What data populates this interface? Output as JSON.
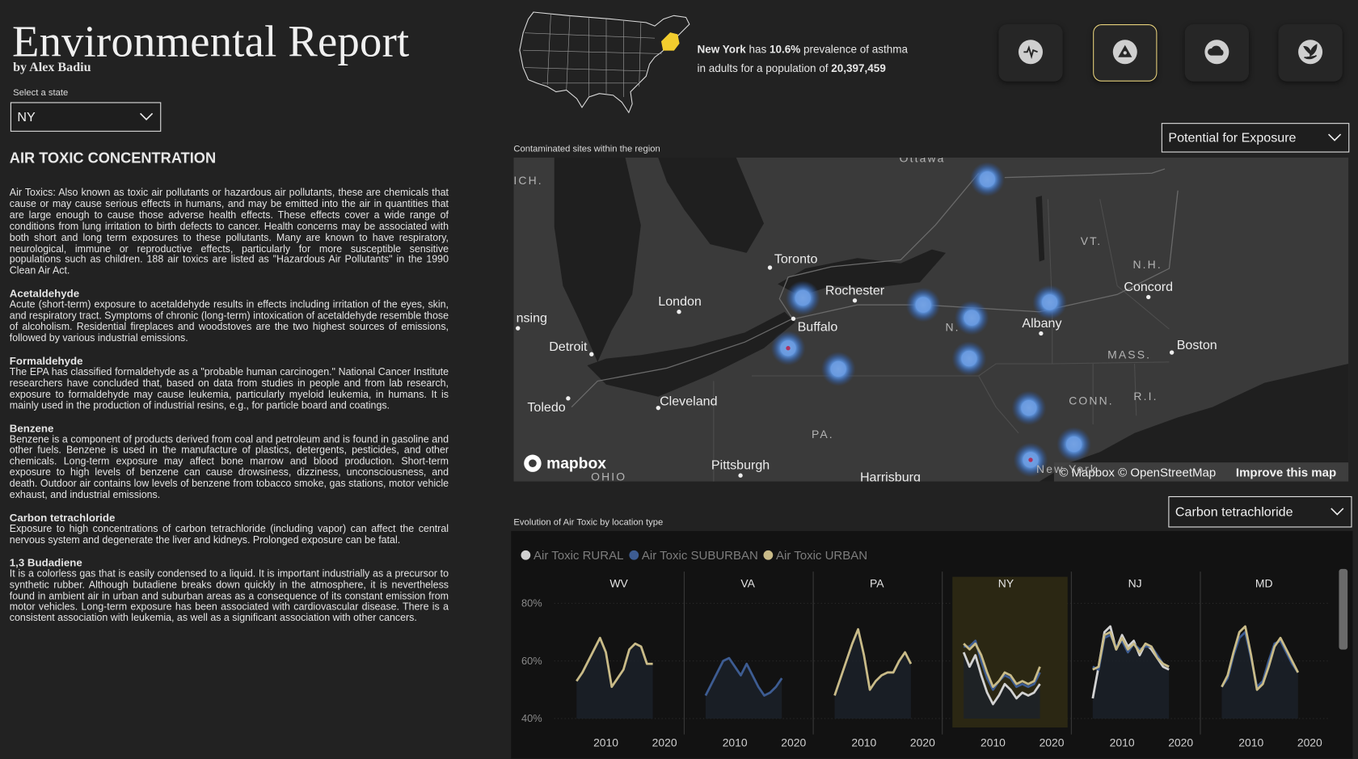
{
  "header": {
    "title": "Environmental Report",
    "byline": "by Alex Badiu"
  },
  "state_select": {
    "label": "Select a state",
    "value": "NY"
  },
  "summary": {
    "state": "New York",
    "has": "has",
    "prevalence": "10.6%",
    "text1": "prevalence of asthma",
    "text2": "in adults for a population of",
    "population": "20,397,459"
  },
  "article": {
    "title": "AIR TOXIC CONCENTRATION",
    "intro": "Air Toxics: Also known as toxic air pollutants or hazardous air pollutants, these are chemicals that cause or may cause serious effects in humans, and may be emitted into the air in quantities that are large enough to cause those adverse health effects. These effects cover a wide range of conditions from lung irritation to birth defects to cancer. Health concerns may be associated with both short and long term exposures to these pollutants. Many are known to have respiratory, neurological, immune or reproductive effects, particularly for more susceptible sensitive populations such as children. 188 air toxics are listed as \"Hazardous Air Pollutants\" in the 1990 Clean Air Act.",
    "sections": [
      {
        "heading": "Acetaldehyde",
        "body": "Acute (short-term) exposure to acetaldehyde results in effects including irritation of the eyes, skin, and respiratory tract. Symptoms of chronic (long-term) intoxication of acetaldehyde resemble those of alcoholism. Residential fireplaces and woodstoves are the two highest sources of emissions, followed by various industrial emissions."
      },
      {
        "heading": "Formaldehyde",
        "body": "The EPA has classified formaldehyde as a \"probable human carcinogen.\" National Cancer Institute researchers have concluded that, based on data from studies in people and from lab research, exposure to formaldehyde may cause leukemia, particularly myeloid leukemia, in humans. It is mainly used in the production of industrial resins, e.g., for particle board and coatings."
      },
      {
        "heading": "Benzene",
        "body": "Benzene is a component of products derived from coal and petroleum and is found in gasoline and other fuels. Benzene is used in the manufacture of plastics, detergents, pesticides, and other chemicals. Long-term exposure may affect bone marrow and blood production. Short-term exposure to high levels of benzene can cause drowsiness, dizziness, unconsciousness, and death. Outdoor air contains low levels of benzene from tobacco smoke, gas stations, motor vehicle exhaust, and industrial emissions."
      },
      {
        "heading": "Carbon tetrachloride",
        "body": "Exposure to high concentrations of carbon tetrachloride (including vapor) can affect the central nervous system and degenerate the liver and kidneys. Prolonged exposure can be fatal."
      },
      {
        "heading": "1,3 Budadiene",
        "body": "It is a colorless gas that is easily condensed to a liquid. It is important industrially as a precursor to synthetic rubber. Although butadiene breaks down quickly in the atmosphere, it is nevertheless found in ambient air in urban and suburban areas as a consequence of its constant emission from motor vehicles. Long-term exposure has been associated with cardiovascular disease. There is a consistent association with leukemia, as well as a significant association with other cancers."
      }
    ]
  },
  "map": {
    "title": "Contaminated sites within the region",
    "dropdown": "Potential for Exposure",
    "labels": [
      "Ottawa",
      "Toronto",
      "Rochester",
      "London",
      "Buffalo",
      "Detroit",
      "nsing",
      "Toledo",
      "Cleveland",
      "Pittsburgh",
      "Harrisburg",
      "Albany",
      "Concord",
      "Boston",
      "VT.",
      "N.H.",
      "MASS.",
      "CONN.",
      "R.I.",
      "PA.",
      "OHIO",
      "N.",
      "ICH.",
      "New York"
    ],
    "logo": "mapbox",
    "attribution": "© Mapbox © OpenStreetMap",
    "improve": "Improve this map"
  },
  "trend": {
    "title": "Evolution of Air Toxic by location type",
    "dropdown": "Carbon tetrachloride",
    "series": [
      {
        "name": "Air Toxic RURAL",
        "color": "#d2d2d2"
      },
      {
        "name": "Air Toxic SUBURBAN",
        "color": "#3d5c92"
      },
      {
        "name": "Air Toxic URBAN",
        "color": "#c9bb88"
      }
    ],
    "x": [
      2005,
      2006,
      2007,
      2008,
      2009,
      2010,
      2011,
      2012,
      2013,
      2014,
      2015,
      2016,
      2017,
      2018
    ],
    "xlim": [
      2001.5,
      2023.5
    ],
    "xticks": [
      2010,
      2020
    ],
    "ylim": [
      36,
      82
    ],
    "yticks": [
      {
        "value": 40,
        "label": "40%"
      },
      {
        "value": 60,
        "label": "60%"
      },
      {
        "value": 80,
        "label": "80%"
      }
    ],
    "grid": true,
    "panels": [
      {
        "label": "WV",
        "selected": false,
        "values": [
          null,
          null,
          [
            53,
            56,
            60,
            64,
            68,
            63,
            51,
            54,
            57,
            64,
            66,
            65,
            59,
            59
          ]
        ]
      },
      {
        "label": "VA",
        "selected": false,
        "values": [
          null,
          [
            48,
            52,
            56,
            60,
            61,
            58,
            55,
            59,
            55,
            51,
            48,
            49,
            51,
            54
          ],
          null
        ]
      },
      {
        "label": "PA",
        "selected": false,
        "values": [
          null,
          null,
          [
            48,
            54,
            60,
            66,
            71,
            62,
            50,
            53,
            55,
            56,
            56,
            60,
            63,
            59
          ]
        ]
      },
      {
        "label": "NY",
        "selected": true,
        "values": [
          [
            63,
            58,
            62,
            55,
            49,
            45,
            48,
            52,
            50,
            47,
            49,
            48,
            49,
            52
          ],
          [
            65,
            65,
            67,
            60,
            54,
            50,
            53,
            55,
            54,
            51,
            52,
            51,
            52,
            56
          ],
          [
            66,
            64,
            66,
            62,
            56,
            51,
            53,
            56,
            55,
            52,
            53,
            52,
            53,
            58
          ]
        ]
      },
      {
        "label": "NJ",
        "selected": false,
        "values": [
          [
            47,
            58,
            70,
            72,
            64,
            69,
            65,
            67,
            62,
            66,
            64,
            61,
            58,
            57
          ],
          [
            58,
            57,
            68,
            69,
            65,
            67,
            63,
            66,
            64,
            65,
            65,
            62,
            59,
            58
          ],
          [
            57,
            58,
            69,
            70,
            64,
            68,
            64,
            66,
            63,
            66,
            65,
            61,
            59,
            58
          ]
        ]
      },
      {
        "label": "MD",
        "selected": false,
        "values": [
          null,
          [
            51,
            54,
            62,
            68,
            70,
            61,
            51,
            53,
            60,
            66,
            67,
            63,
            59,
            56
          ],
          [
            51,
            55,
            63,
            70,
            72,
            62,
            50,
            52,
            58,
            65,
            68,
            64,
            60,
            56
          ]
        ]
      }
    ]
  }
}
